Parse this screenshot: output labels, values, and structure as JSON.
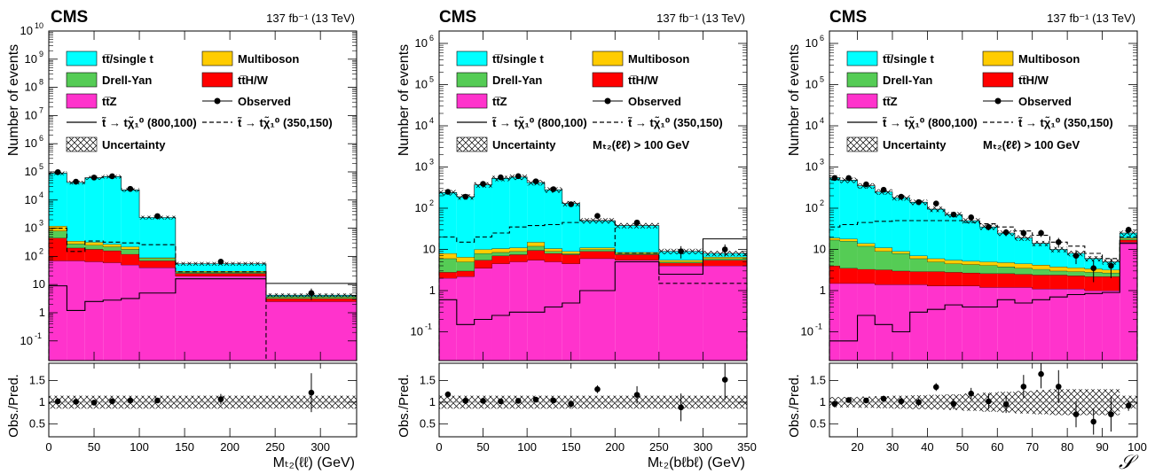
{
  "colors": {
    "ttbar": "#00ffff",
    "drellyan": "#55cc55",
    "ttz": "#ff33cc",
    "multiboson": "#ffcc00",
    "ttHW": "#ff0000"
  },
  "chart_data": [
    {
      "type": "bar",
      "header_left": "CMS",
      "header_right": "137 fb⁻¹ (13 TeV)",
      "xlabel": "Mₜ₂(ℓℓ) (GeV)",
      "ylabel": "Number of events",
      "ratio_ylabel": "Obs./Pred.",
      "selection": "",
      "log_y": true,
      "ylim": [
        0.02,
        10000000000
      ],
      "xlim": [
        0,
        340
      ],
      "xticks": [
        0,
        50,
        100,
        150,
        200,
        250,
        300
      ],
      "ratio_ylim": [
        0.2,
        1.9
      ],
      "ratio_yticks": [
        "0.5",
        "1",
        "1.5"
      ],
      "bin_edges": [
        0,
        20,
        40,
        60,
        80,
        100,
        140,
        240,
        340
      ],
      "stack": {
        "ttz": [
          70,
          70,
          65,
          60,
          50,
          40,
          20,
          2.5
        ],
        "ttHW": [
          450,
          200,
          180,
          160,
          120,
          70,
          25,
          3.2
        ],
        "drellyan": [
          800,
          280,
          250,
          220,
          180,
          85,
          28,
          3.6
        ],
        "multiboson": [
          1200,
          350,
          320,
          270,
          220,
          90,
          30,
          3.8
        ],
        "ttbar": [
          90000,
          42000,
          62000,
          68000,
          23000,
          2400,
          55,
          4.2
        ]
      },
      "uncertainty": [
        0.15,
        0.15,
        0.15,
        0.15,
        0.15,
        0.15,
        0.15,
        0.15
      ],
      "signals": {
        "solid": {
          "label": "t̃ → tχ̃₁⁰ (800,100)",
          "values": [
            9,
            1.2,
            2.5,
            2.8,
            3.2,
            5,
            16,
            11
          ]
        },
        "dashed": {
          "label": "t̃ → tχ̃₁⁰ (350,150)",
          "values": [
            1000,
            150,
            350,
            320,
            300,
            260,
            28,
            0.01
          ]
        }
      },
      "observed": {
        "x": [
          10,
          30,
          50,
          70,
          90,
          120,
          190,
          290
        ],
        "y": [
          98000,
          45000,
          63000,
          70000,
          25000,
          2700,
          65,
          5
        ],
        "err": [
          300,
          200,
          250,
          260,
          150,
          50,
          8,
          2.2
        ]
      },
      "ratio": {
        "x": [
          10,
          30,
          50,
          70,
          90,
          120,
          190,
          290
        ],
        "y": [
          1.02,
          1.01,
          0.99,
          1.02,
          1.04,
          1.04,
          1.07,
          1.22
        ],
        "err": [
          0.02,
          0.02,
          0.02,
          0.02,
          0.03,
          0.04,
          0.12,
          0.45
        ],
        "band": [
          0.15,
          0.15,
          0.15,
          0.15,
          0.15,
          0.15,
          0.15,
          0.15
        ]
      },
      "legend": {
        "ttbar": "tt̅/single t",
        "multiboson": "Multiboson",
        "drellyan": "Drell-Yan",
        "ttHW": "tt̅H/W",
        "ttz": "tt̅Z",
        "observed": "Observed",
        "uncertainty": "Uncertainty"
      }
    },
    {
      "type": "bar",
      "header_left": "CMS",
      "header_right": "137 fb⁻¹ (13 TeV)",
      "xlabel": "Mₜ₂(bℓbℓ) (GeV)",
      "ylabel": "Number of events",
      "ratio_ylabel": "Obs./Pred.",
      "selection": "Mₜ₂(ℓℓ) > 100 GeV",
      "log_y": true,
      "ylim": [
        0.02,
        2000000
      ],
      "xlim": [
        0,
        350
      ],
      "xticks": [
        0,
        50,
        100,
        150,
        200,
        250,
        300,
        350
      ],
      "ratio_ylim": [
        0.2,
        1.9
      ],
      "ratio_yticks": [
        "0.5",
        "1",
        "1.5"
      ],
      "bin_edges": [
        0,
        20,
        40,
        60,
        80,
        100,
        120,
        140,
        160,
        200,
        250,
        300,
        350
      ],
      "stack": {
        "ttz": [
          2,
          2.2,
          3.5,
          4.5,
          5,
          5.5,
          5,
          4.5,
          6,
          5.5,
          4,
          4
        ],
        "ttHW": [
          2.8,
          3.0,
          5.5,
          7.0,
          7.5,
          9.5,
          8.0,
          7.5,
          9.0,
          7.5,
          4.7,
          5.5
        ],
        "drellyan": [
          6,
          5,
          8,
          8.5,
          9,
          12,
          9,
          8,
          10,
          8,
          5,
          6
        ],
        "multiboson": [
          8,
          6.5,
          10,
          10.5,
          11,
          15,
          10.5,
          9,
          11,
          8.5,
          5.5,
          6.5
        ],
        "ttbar": [
          240,
          190,
          370,
          530,
          570,
          420,
          280,
          130,
          50,
          38,
          9,
          8
        ]
      },
      "uncertainty": [
        0.15,
        0.15,
        0.15,
        0.15,
        0.15,
        0.15,
        0.15,
        0.15,
        0.15,
        0.15,
        0.15,
        0.15
      ],
      "signals": {
        "solid": {
          "label": "t̃ → tχ̃₁⁰ (800,100)",
          "values": [
            0.6,
            0.15,
            0.2,
            0.25,
            0.3,
            0.3,
            0.4,
            0.5,
            1,
            5,
            2.5,
            18
          ]
        },
        "dashed": {
          "label": "t̃ → tχ̃₁⁰ (350,150)",
          "values": [
            20,
            15,
            20,
            25,
            35,
            38,
            40,
            45,
            50,
            8,
            1.5,
            1.5
          ]
        }
      },
      "observed": {
        "x": [
          10,
          30,
          50,
          70,
          90,
          110,
          130,
          150,
          180,
          225,
          275,
          325
        ],
        "y": [
          250,
          190,
          390,
          560,
          600,
          450,
          290,
          125,
          65,
          45,
          9,
          10
        ],
        "err": [
          16,
          14,
          20,
          24,
          25,
          21,
          17,
          11,
          8,
          7,
          3,
          3.2
        ]
      },
      "ratio": {
        "x": [
          10,
          30,
          50,
          70,
          90,
          110,
          130,
          150,
          180,
          225,
          275,
          325
        ],
        "y": [
          1.18,
          1.03,
          1.03,
          1.02,
          1.03,
          1.06,
          1.04,
          0.96,
          1.3,
          1.17,
          0.88,
          1.52
        ],
        "err": [
          0.07,
          0.07,
          0.05,
          0.05,
          0.05,
          0.05,
          0.06,
          0.09,
          0.09,
          0.2,
          0.32,
          0.46
        ],
        "band": [
          0.15,
          0.15,
          0.15,
          0.15,
          0.15,
          0.15,
          0.15,
          0.15,
          0.15,
          0.15,
          0.15,
          0.15
        ]
      },
      "legend": {
        "ttbar": "tt̅/single t",
        "multiboson": "Multiboson",
        "drellyan": "Drell-Yan",
        "ttHW": "tt̅H/W",
        "ttz": "tt̅Z",
        "observed": "Observed",
        "uncertainty": "Uncertainty"
      }
    },
    {
      "type": "bar",
      "header_left": "CMS",
      "header_right": "137 fb⁻¹ (13 TeV)",
      "xlabel": "𝒮",
      "ylabel": "Number of events",
      "ratio_ylabel": "Obs./Pred.",
      "selection": "Mₜ₂(ℓℓ) > 100 GeV",
      "log_y": true,
      "ylim": [
        0.02,
        2000000
      ],
      "xlim": [
        12,
        100
      ],
      "xticks": [
        20,
        30,
        40,
        50,
        60,
        70,
        80,
        90,
        100
      ],
      "ratio_ylim": [
        0.2,
        1.9
      ],
      "ratio_yticks": [
        "0.5",
        "1",
        "1.5"
      ],
      "bin_edges": [
        12,
        15,
        20,
        25,
        30,
        35,
        40,
        45,
        50,
        55,
        60,
        65,
        70,
        75,
        80,
        85,
        90,
        95,
        100
      ],
      "stack": {
        "ttz": [
          1.5,
          1.5,
          1.5,
          1.4,
          1.4,
          1.4,
          1.3,
          1.3,
          1.3,
          1.2,
          1.2,
          1.2,
          1.1,
          1.1,
          1.1,
          1.0,
          1.0,
          15
        ],
        "ttHW": [
          4,
          3.5,
          3.3,
          3.2,
          3.0,
          2.9,
          2.9,
          2.8,
          2.7,
          2.6,
          2.6,
          2.5,
          2.4,
          2.4,
          2.3,
          2.2,
          2.2,
          17
        ],
        "drellyan": [
          17,
          16,
          12,
          9,
          8,
          6,
          5,
          4.5,
          4.3,
          4.1,
          3.8,
          3.5,
          3.3,
          3.0,
          2.9,
          2.8,
          2.7,
          18
        ],
        "multiboson": [
          19,
          18,
          14,
          11,
          9,
          7,
          6,
          5.5,
          5.2,
          5.0,
          4.8,
          4.5,
          4.2,
          3.8,
          3.6,
          3.4,
          3.2,
          19
        ],
        "ttbar": [
          550,
          480,
          350,
          250,
          180,
          140,
          95,
          70,
          50,
          35,
          25,
          19,
          14,
          10,
          8,
          6,
          5,
          25
        ]
      },
      "uncertainty": [
        0.15,
        0.15,
        0.15,
        0.15,
        0.15,
        0.15,
        0.15,
        0.15,
        0.15,
        0.15,
        0.15,
        0.15,
        0.15,
        0.15,
        0.15,
        0.15,
        0.15,
        0.15
      ],
      "signals": {
        "solid": {
          "label": "t̃ → tχ̃₁⁰ (800,100)",
          "values": [
            0.06,
            0.06,
            0.25,
            0.15,
            0.1,
            0.3,
            0.35,
            0.45,
            0.4,
            0.4,
            0.6,
            0.5,
            0.6,
            0.7,
            0.8,
            0.85,
            0.9,
            14
          ]
        },
        "dashed": {
          "label": "t̃ → tχ̃₁⁰ (350,150)",
          "values": [
            35,
            40,
            45,
            48,
            50,
            50,
            50,
            50,
            45,
            42,
            35,
            28,
            22,
            15,
            12,
            8,
            6,
            20
          ]
        }
      },
      "observed": {
        "x": [
          13.5,
          17.5,
          22.5,
          27.5,
          32.5,
          37.5,
          42.5,
          47.5,
          52.5,
          57.5,
          62.5,
          67.5,
          72.5,
          77.5,
          82.5,
          87.5,
          92.5,
          97.5
        ],
        "y": [
          540,
          540,
          380,
          280,
          190,
          140,
          130,
          70,
          60,
          35,
          26,
          25,
          25,
          15,
          7,
          3.5,
          4,
          30
        ],
        "err": [
          23,
          23,
          19,
          17,
          14,
          12,
          11,
          8,
          8,
          6,
          5,
          5,
          5,
          4,
          2.6,
          1.9,
          2,
          5.5
        ]
      },
      "ratio": {
        "x": [
          13.5,
          17.5,
          22.5,
          27.5,
          32.5,
          37.5,
          42.5,
          47.5,
          52.5,
          57.5,
          62.5,
          67.5,
          72.5,
          77.5,
          82.5,
          87.5,
          92.5,
          97.5
        ],
        "y": [
          0.96,
          1.05,
          1.04,
          1.08,
          1.02,
          1.0,
          1.35,
          0.96,
          1.2,
          1.02,
          0.95,
          1.36,
          1.65,
          1.36,
          0.72,
          0.55,
          0.72,
          0.92
        ],
        "err": [
          0.05,
          0.05,
          0.06,
          0.07,
          0.08,
          0.09,
          0.09,
          0.12,
          0.13,
          0.18,
          0.2,
          0.27,
          0.33,
          0.38,
          0.3,
          0.3,
          0.4,
          0.12
        ],
        "band": [
          0.12,
          0.12,
          0.13,
          0.14,
          0.15,
          0.16,
          0.17,
          0.18,
          0.2,
          0.22,
          0.24,
          0.26,
          0.28,
          0.3,
          0.3,
          0.3,
          0.3,
          0.15
        ]
      },
      "legend": {
        "ttbar": "tt̅/single t",
        "multiboson": "Multiboson",
        "drellyan": "Drell-Yan",
        "ttHW": "tt̅H/W",
        "ttz": "tt̅Z",
        "observed": "Observed",
        "uncertainty": "Uncertainty"
      }
    }
  ]
}
